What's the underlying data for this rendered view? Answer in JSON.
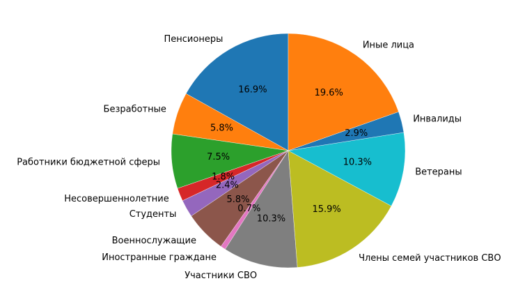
{
  "chart_data": {
    "type": "pie",
    "title": "",
    "start_angle_deg": 90,
    "direction": "counterclockwise",
    "legend": "none",
    "slices": [
      {
        "label": "Пенсионеры",
        "value": 16.9,
        "pct_text": "16.9%",
        "color": "#1f77b4"
      },
      {
        "label": "Безработные",
        "value": 5.8,
        "pct_text": "5.8%",
        "color": "#ff7f0e"
      },
      {
        "label": "Работники бюджетной сферы",
        "value": 7.5,
        "pct_text": "7.5%",
        "color": "#2ca02c"
      },
      {
        "label": "Несовершеннолетние",
        "value": 1.8,
        "pct_text": "1.8%",
        "color": "#d62728"
      },
      {
        "label": "Студенты",
        "value": 2.4,
        "pct_text": "2.4%",
        "color": "#9467bd"
      },
      {
        "label": "Военнослужащие",
        "value": 5.8,
        "pct_text": "5.8%",
        "color": "#8c564b"
      },
      {
        "label": "Иностранные граждане",
        "value": 0.7,
        "pct_text": "0.7%",
        "color": "#e377c2"
      },
      {
        "label": "Участники СВО",
        "value": 10.3,
        "pct_text": "10.3%",
        "color": "#7f7f7f"
      },
      {
        "label": "Члены семей участников СВО",
        "value": 15.9,
        "pct_text": "15.9%",
        "color": "#bcbd22"
      },
      {
        "label": "Ветераны",
        "value": 10.3,
        "pct_text": "10.3%",
        "color": "#17becf"
      },
      {
        "label": "Инвалиды",
        "value": 2.9,
        "pct_text": "2.9%",
        "color": "#1f77b4"
      },
      {
        "label": "Иные лица",
        "value": 19.6,
        "pct_text": "19.6%",
        "color": "#ff7f0e"
      }
    ]
  }
}
